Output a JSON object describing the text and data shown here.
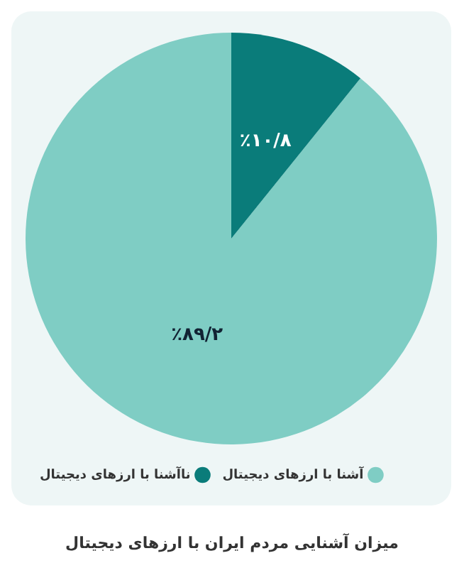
{
  "chart_data": {
    "type": "pie",
    "title": "میزان آشنایی مردم ایران با ارزهای دیجیتال",
    "categories": [
      "آشنا با ارزهای دیجیتال",
      "ناآشنا با ارزهای دیجیتال"
    ],
    "values": [
      89.2,
      10.8
    ],
    "value_labels": [
      "٪۸۹/۲",
      "٪۱۰/۸"
    ],
    "colors": [
      "#7fcdc4",
      "#0a7c7a"
    ],
    "legend": "bottom"
  }
}
